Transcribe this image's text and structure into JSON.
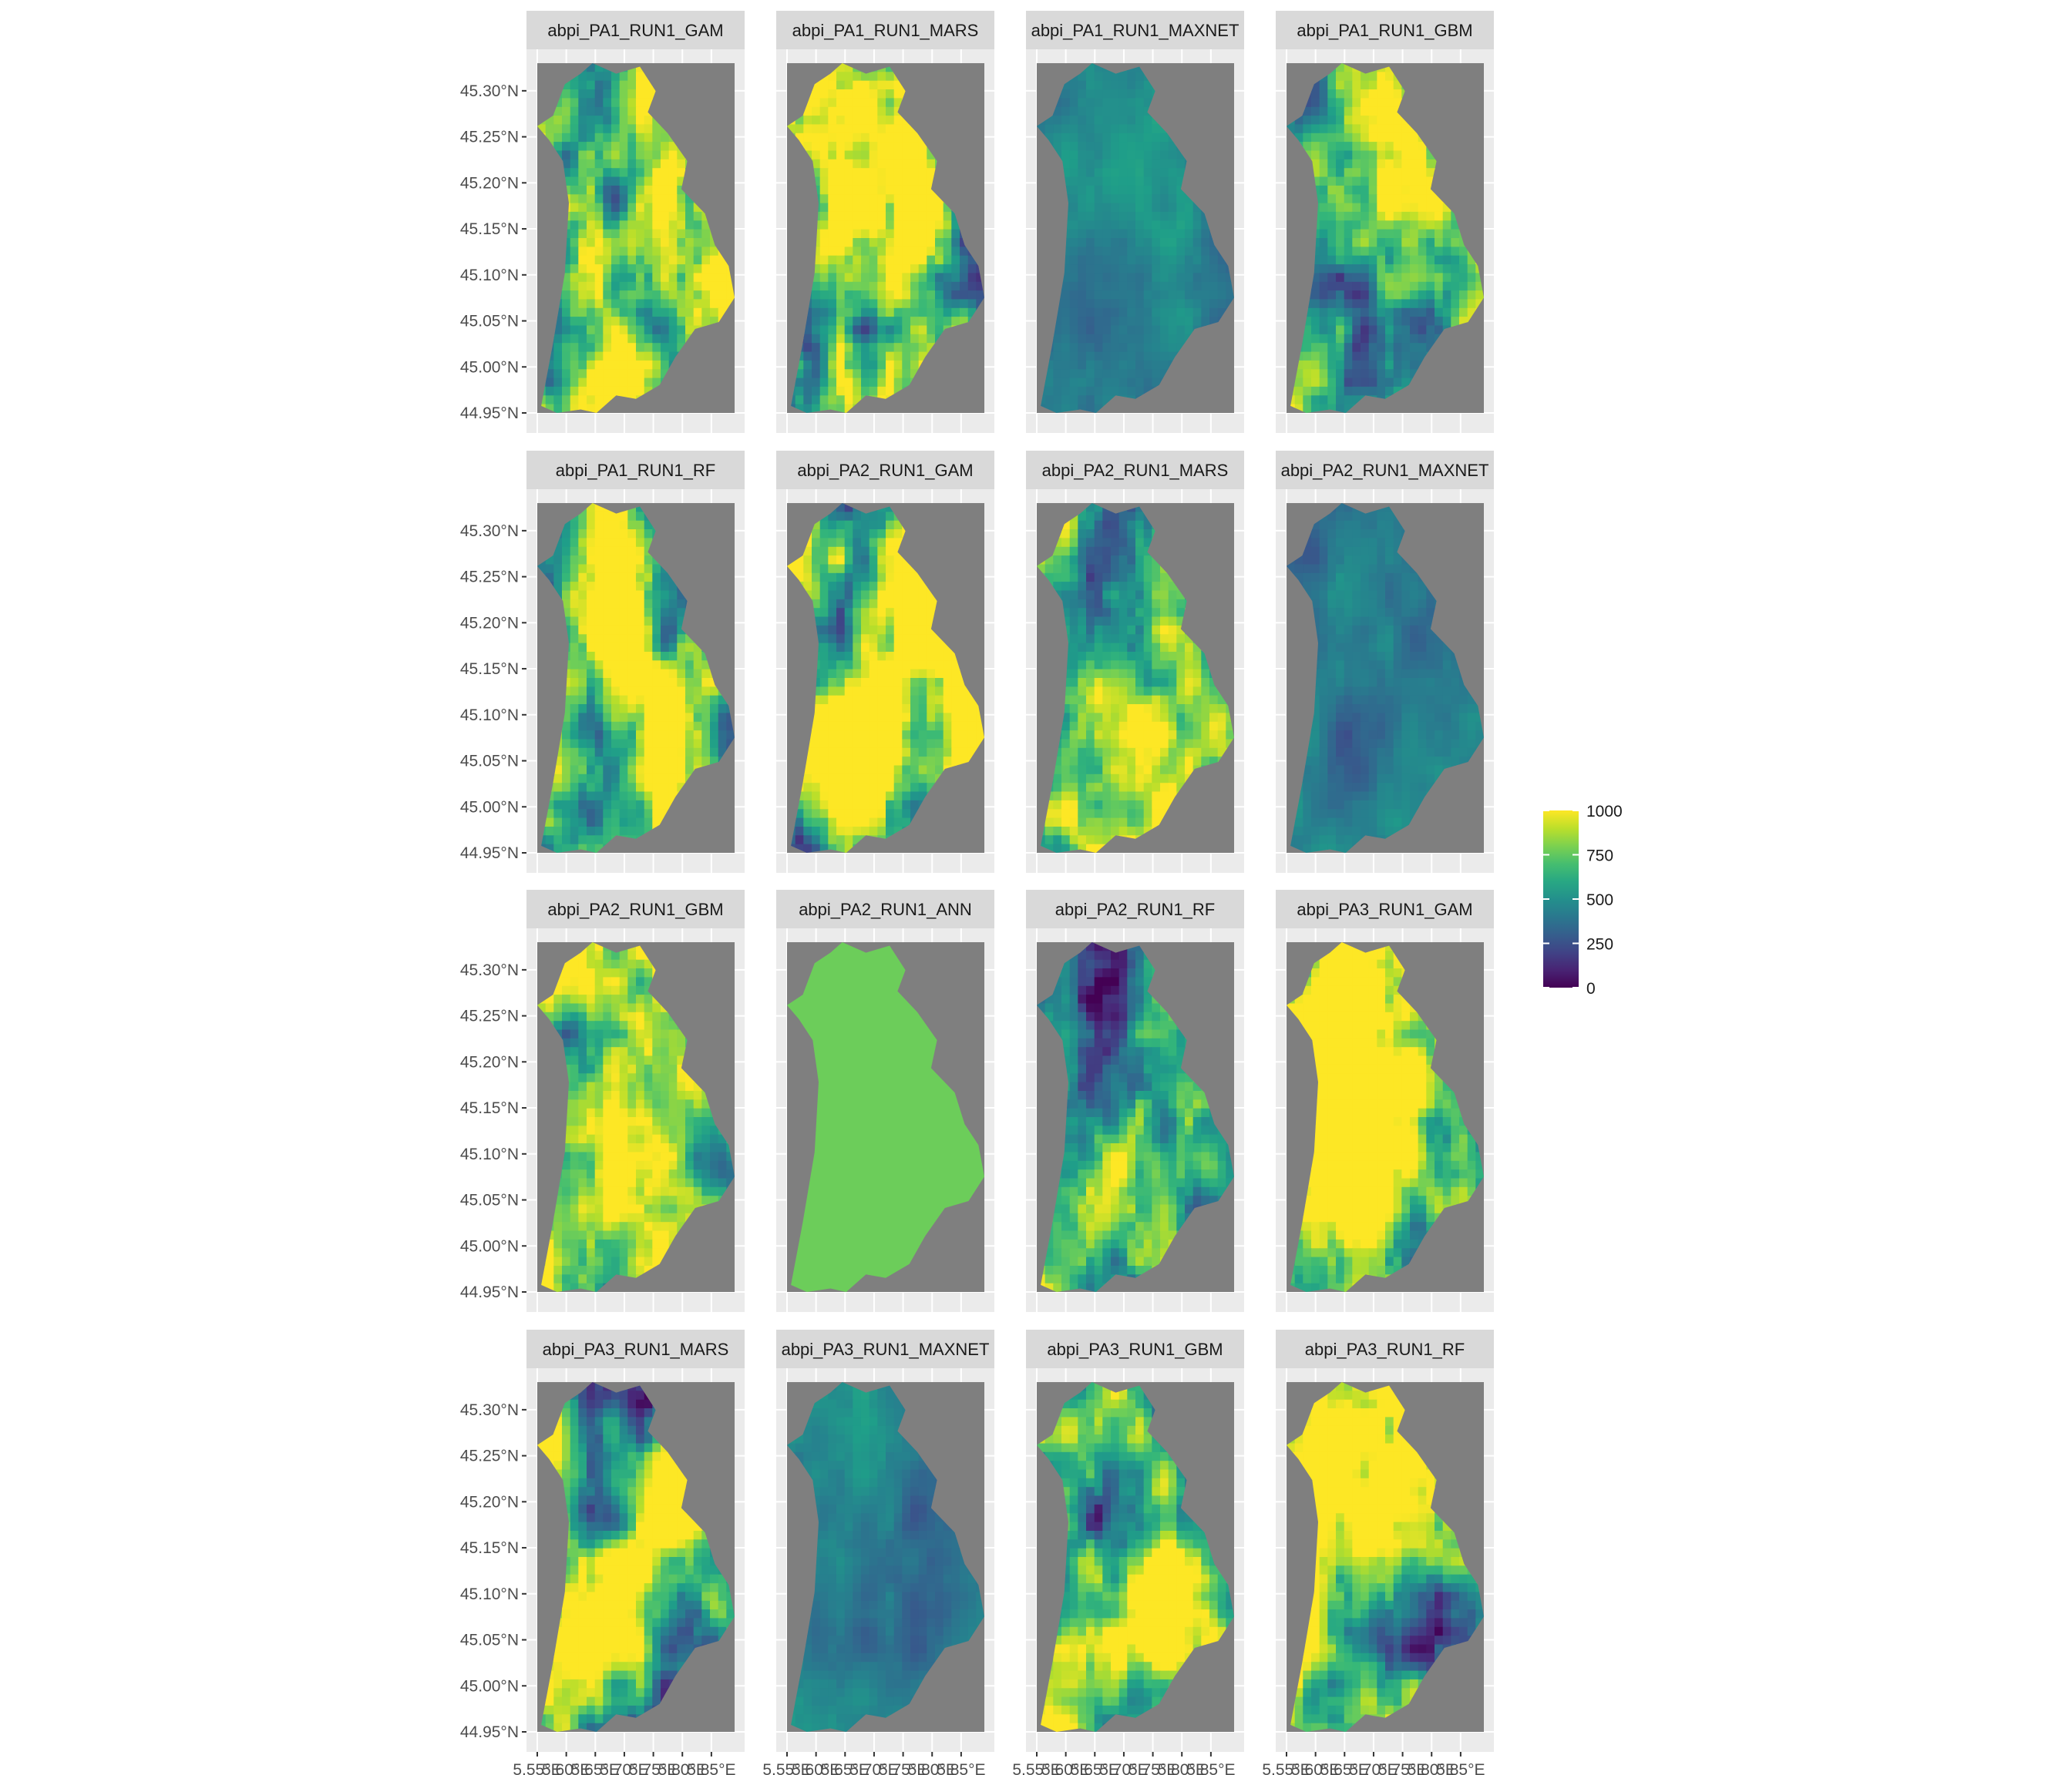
{
  "chart_data": {
    "type": "heatmap",
    "layout": {
      "facet_rows": 4,
      "facet_cols": 4
    },
    "panels": [
      {
        "title": "abpi_PA1_RUN1_GAM",
        "look": "high"
      },
      {
        "title": "abpi_PA1_RUN1_MARS",
        "look": "mixed"
      },
      {
        "title": "abpi_PA1_RUN1_MAXNET",
        "look": "flat"
      },
      {
        "title": "abpi_PA1_RUN1_GBM",
        "look": "mid"
      },
      {
        "title": "abpi_PA1_RUN1_RF",
        "look": "mid"
      },
      {
        "title": "abpi_PA2_RUN1_GAM",
        "look": "high"
      },
      {
        "title": "abpi_PA2_RUN1_MARS",
        "look": "mid"
      },
      {
        "title": "abpi_PA2_RUN1_MAXNET",
        "look": "flat"
      },
      {
        "title": "abpi_PA2_RUN1_GBM",
        "look": "mid"
      },
      {
        "title": "abpi_PA2_RUN1_ANN",
        "look": "uniform"
      },
      {
        "title": "abpi_PA2_RUN1_RF",
        "look": "mid"
      },
      {
        "title": "abpi_PA3_RUN1_GAM",
        "look": "high"
      },
      {
        "title": "abpi_PA3_RUN1_MARS",
        "look": "mid"
      },
      {
        "title": "abpi_PA3_RUN1_MAXNET",
        "look": "flat"
      },
      {
        "title": "abpi_PA3_RUN1_GBM",
        "look": "mid"
      },
      {
        "title": "abpi_PA3_RUN1_RF",
        "look": "mid"
      }
    ],
    "y_ticks": [
      "45.30°N",
      "45.25°N",
      "45.20°N",
      "45.15°N",
      "45.10°N",
      "45.05°N",
      "45.00°N",
      "44.95°N"
    ],
    "x_ticks": [
      "5.55°E",
      "5.60°E",
      "5.65°E",
      "5.70°E",
      "5.75°E",
      "5.80°E",
      "5.85°E"
    ],
    "ylim": [
      44.95,
      45.33
    ],
    "xlim": [
      5.55,
      5.89
    ],
    "legend": {
      "ticks": [
        "1000",
        "750",
        "500",
        "250",
        "0"
      ],
      "range": [
        0,
        1000
      ],
      "colors": [
        "#440154",
        "#3b528b",
        "#21918c",
        "#5ec962",
        "#fde725"
      ]
    },
    "colors": {
      "panel_bg": "#7f7f7f",
      "strip_bg": "#d9d9d9",
      "grid_bg": "#ebebeb",
      "uniform_fill": "#6ccd5a"
    }
  }
}
